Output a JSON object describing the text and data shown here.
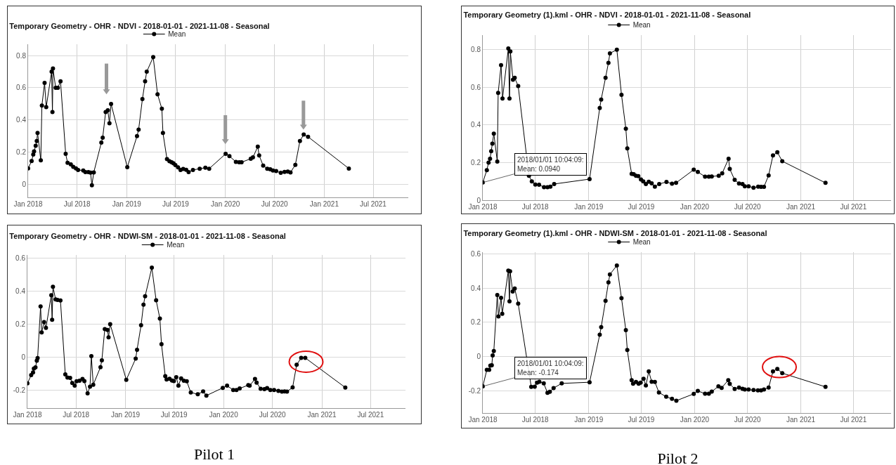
{
  "chart_data": [
    {
      "type": "line",
      "title": "Temporary Geometry - OHR - NDVI - 2018-01-01 - 2021-11-08 - Seasonal",
      "legend": "top",
      "marker": "circle",
      "grid": true,
      "xlim": [
        "2018-01-01",
        "2021-11-08"
      ],
      "xticks": [
        {
          "value": "2018-01-01",
          "label": "Jan 2018"
        },
        {
          "value": "2018-07-01",
          "label": "Jul 2018"
        },
        {
          "value": "2019-01-01",
          "label": "Jan 2019"
        },
        {
          "value": "2019-07-01",
          "label": "Jul 2019"
        },
        {
          "value": "2020-01-01",
          "label": "Jan 2020"
        },
        {
          "value": "2020-07-01",
          "label": "Jul 2020"
        },
        {
          "value": "2021-01-01",
          "label": "Jan 2021"
        },
        {
          "value": "2021-07-01",
          "label": "Jul 2021"
        }
      ],
      "ylim": [
        -0.08,
        0.87
      ],
      "yticks": [
        0,
        0.2,
        0.4,
        0.6,
        0.8
      ],
      "x": [
        "2018-01-01",
        "2018-01-14",
        "2018-01-20",
        "2018-01-23",
        "2018-01-29",
        "2018-02-02",
        "2018-02-05",
        "2018-02-17",
        "2018-02-21",
        "2018-03-03",
        "2018-03-09",
        "2018-03-29",
        "2018-04-01",
        "2018-04-03",
        "2018-04-13",
        "2018-04-21",
        "2018-05-01",
        "2018-05-20",
        "2018-05-27",
        "2018-06-08",
        "2018-06-17",
        "2018-06-27",
        "2018-07-05",
        "2018-07-24",
        "2018-08-01",
        "2018-08-12",
        "2018-08-20",
        "2018-08-25",
        "2018-09-01",
        "2018-09-29",
        "2018-10-04",
        "2018-10-15",
        "2018-10-23",
        "2018-10-29",
        "2018-11-04",
        "2019-01-03",
        "2019-02-08",
        "2019-02-14",
        "2019-02-28",
        "2019-03-10",
        "2019-03-16",
        "2019-04-09",
        "2019-04-25",
        "2019-05-11",
        "2019-05-15",
        "2019-05-30",
        "2019-06-08",
        "2019-06-16",
        "2019-06-23",
        "2019-06-30",
        "2019-07-10",
        "2019-07-19",
        "2019-07-29",
        "2019-08-09",
        "2019-08-18",
        "2019-09-03",
        "2019-09-28",
        "2019-10-19",
        "2019-11-02",
        "2020-01-02",
        "2020-01-16",
        "2020-02-09",
        "2020-02-21",
        "2020-03-01",
        "2020-04-04",
        "2020-04-12",
        "2020-04-30",
        "2020-05-05",
        "2020-05-20",
        "2020-06-04",
        "2020-06-15",
        "2020-06-25",
        "2020-07-07",
        "2020-07-24",
        "2020-08-07",
        "2020-08-19",
        "2020-08-29",
        "2020-09-16",
        "2020-10-03",
        "2020-10-17",
        "2020-11-02",
        "2021-04-02"
      ],
      "series": [
        {
          "name": "Mean",
          "color": "#000000",
          "values": [
            0.1,
            0.145,
            0.186,
            0.205,
            0.24,
            0.27,
            0.32,
            0.15,
            0.49,
            0.63,
            0.48,
            0.7,
            0.45,
            0.72,
            0.6,
            0.6,
            0.64,
            0.19,
            0.135,
            0.125,
            0.11,
            0.1,
            0.09,
            0.087,
            0.077,
            0.077,
            0.074,
            -0.005,
            0.075,
            0.26,
            0.29,
            0.45,
            0.46,
            0.38,
            0.5,
            0.107,
            0.3,
            0.34,
            0.53,
            0.64,
            0.7,
            0.79,
            0.56,
            0.47,
            0.32,
            0.157,
            0.144,
            0.138,
            0.131,
            0.12,
            0.106,
            0.09,
            0.096,
            0.091,
            0.077,
            0.09,
            0.098,
            0.104,
            0.098,
            0.19,
            0.176,
            0.14,
            0.138,
            0.138,
            0.16,
            0.168,
            0.235,
            0.18,
            0.117,
            0.098,
            0.094,
            0.087,
            0.083,
            0.072,
            0.078,
            0.08,
            0.075,
            0.122,
            0.27,
            0.31,
            0.296,
            0.099
          ]
        }
      ]
    },
    {
      "type": "line",
      "title": "Temporary Geometry (1).kml - OHR - NDVI - 2018-01-01 - 2021-11-08 - Seasonal",
      "legend": "top",
      "marker": "circle",
      "grid": true,
      "xlim": [
        "2018-01-01",
        "2021-11-08"
      ],
      "xticks": [
        {
          "value": "2018-01-01",
          "label": "Jan 2018"
        },
        {
          "value": "2018-07-01",
          "label": "Jul 2018"
        },
        {
          "value": "2019-01-01",
          "label": "Jan 2019"
        },
        {
          "value": "2019-07-01",
          "label": "Jul 2019"
        },
        {
          "value": "2020-01-01",
          "label": "Jan 2020"
        },
        {
          "value": "2020-07-01",
          "label": "Jul 2020"
        },
        {
          "value": "2021-01-01",
          "label": "Jan 2021"
        },
        {
          "value": "2021-07-01",
          "label": "Jul 2021"
        }
      ],
      "ylim": [
        0,
        0.877
      ],
      "yticks": [
        0,
        0.2,
        0.4,
        0.6,
        0.8
      ],
      "annotations": [
        {
          "text": "2018/01/01 10:04:09:\nMean: 0.0940",
          "x": "2018-01-01",
          "y": 0.094
        }
      ],
      "x": [
        "2018-01-01",
        "2018-01-15",
        "2018-01-21",
        "2018-01-26",
        "2018-01-30",
        "2018-02-03",
        "2018-02-08",
        "2018-02-20",
        "2018-02-23",
        "2018-03-05",
        "2018-03-10",
        "2018-03-30",
        "2018-04-03",
        "2018-04-06",
        "2018-04-15",
        "2018-04-21",
        "2018-05-03",
        "2018-06-09",
        "2018-06-19",
        "2018-07-01",
        "2018-07-14",
        "2018-07-31",
        "2018-08-12",
        "2018-08-22",
        "2018-09-04",
        "2019-01-04",
        "2019-02-08",
        "2019-02-13",
        "2019-02-28",
        "2019-03-10",
        "2019-03-15",
        "2019-04-08",
        "2019-04-24",
        "2019-05-09",
        "2019-05-14",
        "2019-05-29",
        "2019-06-05",
        "2019-06-13",
        "2019-06-21",
        "2019-06-30",
        "2019-07-08",
        "2019-07-17",
        "2019-07-27",
        "2019-08-06",
        "2019-08-17",
        "2019-09-01",
        "2019-09-26",
        "2019-10-15",
        "2019-10-29",
        "2019-12-29",
        "2020-01-12",
        "2020-02-06",
        "2020-02-19",
        "2020-02-29",
        "2020-03-24",
        "2020-04-05",
        "2020-04-27",
        "2020-05-01",
        "2020-05-18",
        "2020-06-02",
        "2020-06-14",
        "2020-06-22",
        "2020-07-05",
        "2020-07-22",
        "2020-08-07",
        "2020-08-17",
        "2020-08-27",
        "2020-09-12",
        "2020-09-27",
        "2020-10-12",
        "2020-10-29",
        "2021-03-27"
      ],
      "series": [
        {
          "name": "Mean",
          "color": "#000000",
          "values": [
            0.094,
            0.16,
            0.2,
            0.22,
            0.26,
            0.3,
            0.354,
            0.205,
            0.57,
            0.717,
            0.54,
            0.806,
            0.54,
            0.79,
            0.64,
            0.65,
            0.606,
            0.13,
            0.1,
            0.083,
            0.082,
            0.069,
            0.069,
            0.072,
            0.086,
            0.112,
            0.49,
            0.535,
            0.65,
            0.73,
            0.78,
            0.8,
            0.56,
            0.38,
            0.275,
            0.14,
            0.138,
            0.13,
            0.128,
            0.11,
            0.1,
            0.086,
            0.098,
            0.09,
            0.072,
            0.086,
            0.097,
            0.088,
            0.092,
            0.162,
            0.15,
            0.125,
            0.125,
            0.126,
            0.13,
            0.143,
            0.22,
            0.166,
            0.108,
            0.089,
            0.086,
            0.074,
            0.074,
            0.066,
            0.072,
            0.071,
            0.071,
            0.132,
            0.238,
            0.255,
            0.207,
            0.092
          ]
        }
      ]
    },
    {
      "type": "line",
      "title": "Temporary Geometry - OHR - NDWI-SM - 2018-01-01 - 2021-11-08 - Seasonal",
      "legend": "top",
      "marker": "circle",
      "grid": true,
      "xlim": [
        "2018-01-01",
        "2021-11-08"
      ],
      "xticks": [
        {
          "value": "2018-01-01",
          "label": "Jan 2018"
        },
        {
          "value": "2018-07-01",
          "label": "Jul 2018"
        },
        {
          "value": "2019-01-01",
          "label": "Jan 2019"
        },
        {
          "value": "2019-07-01",
          "label": "Jul 2019"
        },
        {
          "value": "2020-01-01",
          "label": "Jan 2020"
        },
        {
          "value": "2020-07-01",
          "label": "Jul 2020"
        },
        {
          "value": "2021-01-01",
          "label": "Jan 2021"
        },
        {
          "value": "2021-07-01",
          "label": "Jul 2021"
        }
      ],
      "ylim": [
        -0.31,
        0.62
      ],
      "yticks": [
        -0.2,
        0,
        0.2,
        0.4,
        0.6
      ],
      "annotations": [
        "Pilot 1"
      ],
      "x": [
        "2018-01-01",
        "2018-01-15",
        "2018-01-22",
        "2018-01-25",
        "2018-01-31",
        "2018-02-05",
        "2018-02-08",
        "2018-02-19",
        "2018-02-23",
        "2018-03-04",
        "2018-03-11",
        "2018-03-31",
        "2018-04-03",
        "2018-04-06",
        "2018-04-16",
        "2018-04-23",
        "2018-05-04",
        "2018-05-22",
        "2018-05-30",
        "2018-06-09",
        "2018-06-17",
        "2018-06-26",
        "2018-07-03",
        "2018-07-14",
        "2018-07-25",
        "2018-08-01",
        "2018-08-13",
        "2018-08-22",
        "2018-08-27",
        "2018-09-03",
        "2018-09-30",
        "2018-10-05",
        "2018-10-16",
        "2018-10-26",
        "2018-10-30",
        "2018-11-05",
        "2019-01-04",
        "2019-02-08",
        "2019-02-13",
        "2019-02-28",
        "2019-03-09",
        "2019-03-15",
        "2019-04-09",
        "2019-04-25",
        "2019-05-09",
        "2019-05-15",
        "2019-05-29",
        "2019-06-03",
        "2019-06-14",
        "2019-06-23",
        "2019-06-30",
        "2019-07-09",
        "2019-07-17",
        "2019-07-27",
        "2019-08-06",
        "2019-08-17",
        "2019-09-01",
        "2019-09-27",
        "2019-10-17",
        "2019-10-29",
        "2019-12-29",
        "2020-01-14",
        "2020-02-06",
        "2020-02-18",
        "2020-03-01",
        "2020-04-02",
        "2020-04-07",
        "2020-04-27",
        "2020-05-03",
        "2020-05-18",
        "2020-06-01",
        "2020-06-11",
        "2020-06-23",
        "2020-07-07",
        "2020-07-23",
        "2020-08-05",
        "2020-08-15",
        "2020-08-24",
        "2020-09-14",
        "2020-09-29",
        "2020-10-16",
        "2020-10-31",
        "2021-03-29"
      ],
      "series": [
        {
          "name": "Mean",
          "color": "#000000",
          "values": [
            -0.16,
            -0.11,
            -0.093,
            -0.07,
            -0.063,
            -0.022,
            -0.006,
            0.307,
            0.15,
            0.213,
            0.177,
            0.376,
            0.226,
            0.427,
            0.35,
            0.347,
            0.344,
            -0.105,
            -0.124,
            -0.127,
            -0.157,
            -0.173,
            -0.147,
            -0.144,
            -0.133,
            -0.146,
            -0.22,
            -0.18,
            0.006,
            -0.168,
            -0.061,
            -0.02,
            0.17,
            0.165,
            0.12,
            0.2,
            -0.138,
            -0.009,
            0.044,
            0.193,
            0.318,
            0.369,
            0.543,
            0.345,
            0.234,
            0.078,
            -0.116,
            -0.136,
            -0.132,
            -0.143,
            -0.146,
            -0.122,
            -0.173,
            -0.13,
            -0.144,
            -0.147,
            -0.215,
            -0.226,
            -0.209,
            -0.234,
            -0.187,
            -0.174,
            -0.2,
            -0.2,
            -0.191,
            -0.17,
            -0.174,
            -0.133,
            -0.155,
            -0.193,
            -0.195,
            -0.188,
            -0.2,
            -0.2,
            -0.205,
            -0.21,
            -0.209,
            -0.21,
            -0.184,
            -0.047,
            -0.005,
            -0.005,
            -0.185
          ]
        }
      ]
    },
    {
      "type": "line",
      "title": "Temporary Geometry (1).kml - OHR - NDWI-SM - 2018-01-01 - 2021-11-08 - Seasonal",
      "legend": "top",
      "marker": "circle",
      "grid": true,
      "xlim": [
        "2018-01-01",
        "2021-11-08"
      ],
      "xticks": [
        {
          "value": "2018-01-01",
          "label": "Jan 2018"
        },
        {
          "value": "2018-07-01",
          "label": "Jul 2018"
        },
        {
          "value": "2019-01-01",
          "label": "Jan 2019"
        },
        {
          "value": "2019-07-01",
          "label": "Jul 2019"
        },
        {
          "value": "2020-01-01",
          "label": "Jan 2020"
        },
        {
          "value": "2020-07-01",
          "label": "Jul 2020"
        },
        {
          "value": "2021-01-01",
          "label": "Jan 2021"
        },
        {
          "value": "2021-07-01",
          "label": "Jul 2021"
        }
      ],
      "ylim": [
        -0.33,
        0.61
      ],
      "yticks": [
        -0.2,
        0,
        0.2,
        0.4,
        0.6
      ],
      "annotations": [
        {
          "text": "2018/01/01 10:04:09:\nMean: -0.174",
          "x": "2018-01-01",
          "y": -0.174
        },
        "Pilot 2"
      ],
      "x": [
        "2018-01-01",
        "2018-01-15",
        "2018-01-23",
        "2018-01-27",
        "2018-02-01",
        "2018-02-04",
        "2018-02-08",
        "2018-02-20",
        "2018-02-24",
        "2018-03-05",
        "2018-03-09",
        "2018-03-30",
        "2018-04-03",
        "2018-04-05",
        "2018-04-14",
        "2018-04-21",
        "2018-05-03",
        "2018-06-17",
        "2018-06-29",
        "2018-07-07",
        "2018-07-15",
        "2018-07-30",
        "2018-08-12",
        "2018-08-20",
        "2018-09-02",
        "2018-09-30",
        "2019-01-04",
        "2019-02-08",
        "2019-02-13",
        "2019-02-28",
        "2019-03-10",
        "2019-03-15",
        "2019-04-08",
        "2019-04-24",
        "2019-05-09",
        "2019-05-14",
        "2019-05-29",
        "2019-06-03",
        "2019-06-13",
        "2019-06-22",
        "2019-06-29",
        "2019-07-09",
        "2019-07-17",
        "2019-07-27",
        "2019-08-06",
        "2019-08-17",
        "2019-08-31",
        "2019-09-25",
        "2019-10-15",
        "2019-10-30",
        "2019-12-29",
        "2020-01-12",
        "2020-02-06",
        "2020-02-19",
        "2020-02-29",
        "2020-03-23",
        "2020-04-03",
        "2020-04-26",
        "2020-05-01",
        "2020-05-18",
        "2020-06-02",
        "2020-06-14",
        "2020-06-22",
        "2020-07-05",
        "2020-07-22",
        "2020-08-06",
        "2020-08-17",
        "2020-08-27",
        "2020-09-12",
        "2020-09-27",
        "2020-10-12",
        "2020-10-29",
        "2021-03-27"
      ],
      "series": [
        {
          "name": "Mean",
          "color": "#000000",
          "values": [
            -0.174,
            -0.078,
            -0.078,
            -0.053,
            -0.051,
            0.007,
            0.032,
            0.36,
            0.234,
            0.343,
            0.25,
            0.502,
            0.323,
            0.498,
            0.38,
            0.398,
            0.309,
            -0.177,
            -0.176,
            -0.152,
            -0.147,
            -0.157,
            -0.212,
            -0.206,
            -0.184,
            -0.157,
            -0.15,
            0.128,
            0.172,
            0.326,
            0.433,
            0.48,
            0.532,
            0.341,
            0.154,
            0.038,
            -0.138,
            -0.159,
            -0.148,
            -0.159,
            -0.152,
            -0.13,
            -0.169,
            -0.087,
            -0.147,
            -0.148,
            -0.21,
            -0.235,
            -0.247,
            -0.258,
            -0.218,
            -0.201,
            -0.217,
            -0.217,
            -0.205,
            -0.174,
            -0.183,
            -0.138,
            -0.16,
            -0.189,
            -0.181,
            -0.188,
            -0.193,
            -0.193,
            -0.196,
            -0.198,
            -0.198,
            -0.193,
            -0.181,
            -0.087,
            -0.072,
            -0.097,
            -0.177
          ]
        }
      ]
    }
  ]
}
